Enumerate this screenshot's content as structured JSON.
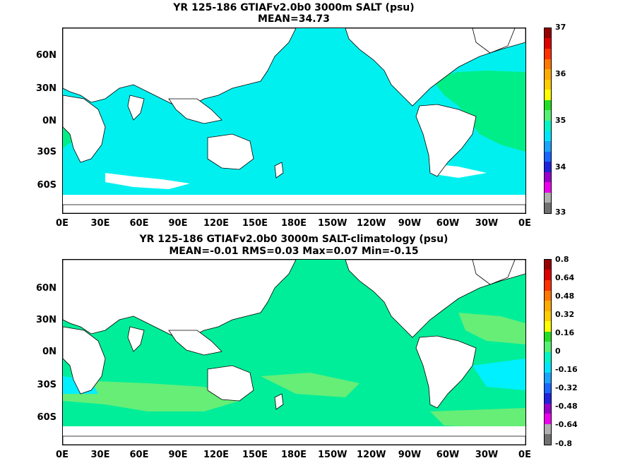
{
  "top": {
    "title_line1": "YR 125-186 GTIAFv2.0b0 3000m SALT (psu)",
    "title_line2": "MEAN=34.73",
    "colorbar_labels": [
      "37",
      "36",
      "35",
      "34",
      "33"
    ],
    "colorbar_colors": [
      "#707070",
      "#b0b0b0",
      "#ee00ee",
      "#9900cc",
      "#2222dd",
      "#1a66ff",
      "#1aa3ff",
      "#00e5ff",
      "#00f5c8",
      "#55f075",
      "#22dd22",
      "#ffff00",
      "#ffcc00",
      "#ffaa00",
      "#ff7700",
      "#ff3300",
      "#dd0000",
      "#990000"
    ],
    "ocean_color": "#00f0f0",
    "accent_color": "#00ee88"
  },
  "bottom": {
    "title_line1": "YR 125-186 GTIAFv2.0b0 3000m SALT-climatology (psu)",
    "title_line2": "MEAN=-0.01   RMS=0.03   Max=0.07   Min=-0.15",
    "colorbar_labels": [
      "0.8",
      "0.64",
      "0.48",
      "0.32",
      "0.16",
      "0",
      "-0.16",
      "-0.32",
      "-0.48",
      "-0.64",
      "-0.8"
    ],
    "colorbar_colors": [
      "#707070",
      "#b0b0b0",
      "#ee00ee",
      "#9900cc",
      "#2222dd",
      "#1a66ff",
      "#1aa3ff",
      "#00e5ff",
      "#00f5c8",
      "#55f075",
      "#22dd22",
      "#ffff00",
      "#ffcc00",
      "#ffaa00",
      "#ff7700",
      "#ff3300",
      "#dd0000",
      "#990000"
    ],
    "ocean_color": "#00ee99",
    "accent_color": "#66ee77"
  },
  "axes": {
    "y_ticks": [
      "60N",
      "30N",
      "0N",
      "30S",
      "60S"
    ],
    "x_ticks": [
      "0E",
      "30E",
      "60E",
      "90E",
      "120E",
      "150E",
      "180E",
      "150W",
      "120W",
      "90W",
      "60W",
      "30W",
      "0E"
    ]
  },
  "chart_data": [
    {
      "type": "heatmap",
      "title": "YR 125-186 GTIAFv2.0b0 3000m SALT (psu)",
      "subtitle": "MEAN=34.73",
      "x_ticks": [
        "0E",
        "30E",
        "60E",
        "90E",
        "120E",
        "150E",
        "180E",
        "150W",
        "120W",
        "90W",
        "60W",
        "30W",
        "0E"
      ],
      "y_ticks": [
        "60N",
        "30N",
        "0N",
        "30S",
        "60S"
      ],
      "colorbar_range": [
        33,
        37
      ],
      "colorbar_ticks": [
        33,
        34,
        35,
        36,
        37
      ],
      "mean": 34.73
    },
    {
      "type": "heatmap",
      "title": "YR 125-186 GTIAFv2.0b0 3000m SALT-climatology (psu)",
      "subtitle": "MEAN=-0.01   RMS=0.03   Max=0.07   Min=-0.15",
      "x_ticks": [
        "0E",
        "30E",
        "60E",
        "90E",
        "120E",
        "150E",
        "180E",
        "150W",
        "120W",
        "90W",
        "60W",
        "30W",
        "0E"
      ],
      "y_ticks": [
        "60N",
        "30N",
        "0N",
        "30S",
        "60S"
      ],
      "colorbar_range": [
        -0.8,
        0.8
      ],
      "colorbar_ticks": [
        -0.8,
        -0.64,
        -0.48,
        -0.32,
        -0.16,
        0,
        0.16,
        0.32,
        0.48,
        0.64,
        0.8
      ],
      "mean": -0.01,
      "rms": 0.03,
      "max": 0.07,
      "min": -0.15
    }
  ]
}
